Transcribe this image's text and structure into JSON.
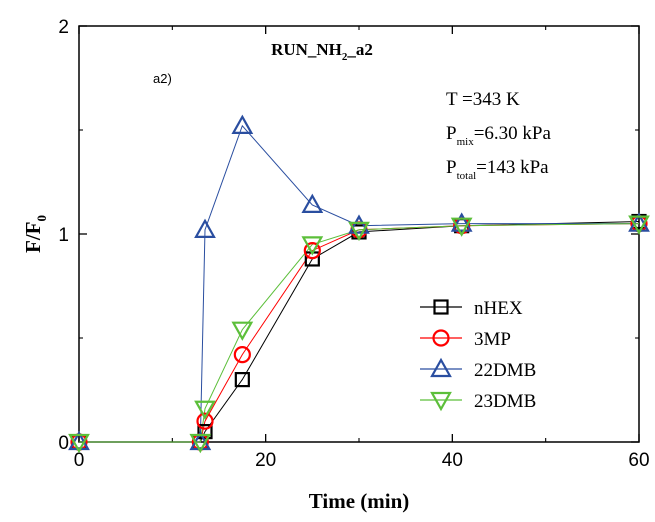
{
  "chart_data": {
    "type": "line",
    "title": "RUN_NH",
    "title_sub": "2",
    "title_suffix": "_a2",
    "panel_label": "a2)",
    "xlabel": "Time (min)",
    "ylabel_main": "F/F",
    "ylabel_sub": "0",
    "xlim": [
      0,
      60
    ],
    "ylim": [
      0,
      2
    ],
    "x_ticks": [
      0,
      20,
      40,
      60
    ],
    "y_ticks": [
      0,
      1,
      2
    ],
    "grid": false,
    "legend_position": "bottom-right",
    "annotations": {
      "T": "T =343 K",
      "pmix_main": "P",
      "pmix_sub": "mix",
      "pmix_value": "=6.30 kPa",
      "ptotal_main": "P",
      "ptotal_sub": "total",
      "ptotal_value": "=143 kPa"
    },
    "series": [
      {
        "name": "nHEX",
        "color": "#000000",
        "marker": "square",
        "x": [
          0,
          13,
          13.5,
          17.5,
          25,
          30,
          41,
          60
        ],
        "y": [
          0,
          0,
          0.05,
          0.3,
          0.88,
          1.01,
          1.04,
          1.06
        ]
      },
      {
        "name": "3MP",
        "color": "#ff0000",
        "marker": "circle",
        "x": [
          0,
          13,
          13.5,
          17.5,
          25,
          30,
          41,
          60
        ],
        "y": [
          0,
          0,
          0.1,
          0.42,
          0.92,
          1.02,
          1.04,
          1.05
        ]
      },
      {
        "name": "22DMB",
        "color": "#2a4ea0",
        "marker": "triangle-up",
        "x": [
          0,
          13,
          13.5,
          17.5,
          25,
          30,
          41,
          60
        ],
        "y": [
          0,
          0,
          1.02,
          1.52,
          1.14,
          1.04,
          1.05,
          1.05
        ]
      },
      {
        "name": "23DMB",
        "color": "#5cbf3a",
        "marker": "triangle-down",
        "x": [
          0,
          13,
          13.5,
          17.5,
          25,
          30,
          41,
          60
        ],
        "y": [
          0,
          0,
          0.16,
          0.54,
          0.95,
          1.02,
          1.04,
          1.05
        ]
      }
    ]
  }
}
